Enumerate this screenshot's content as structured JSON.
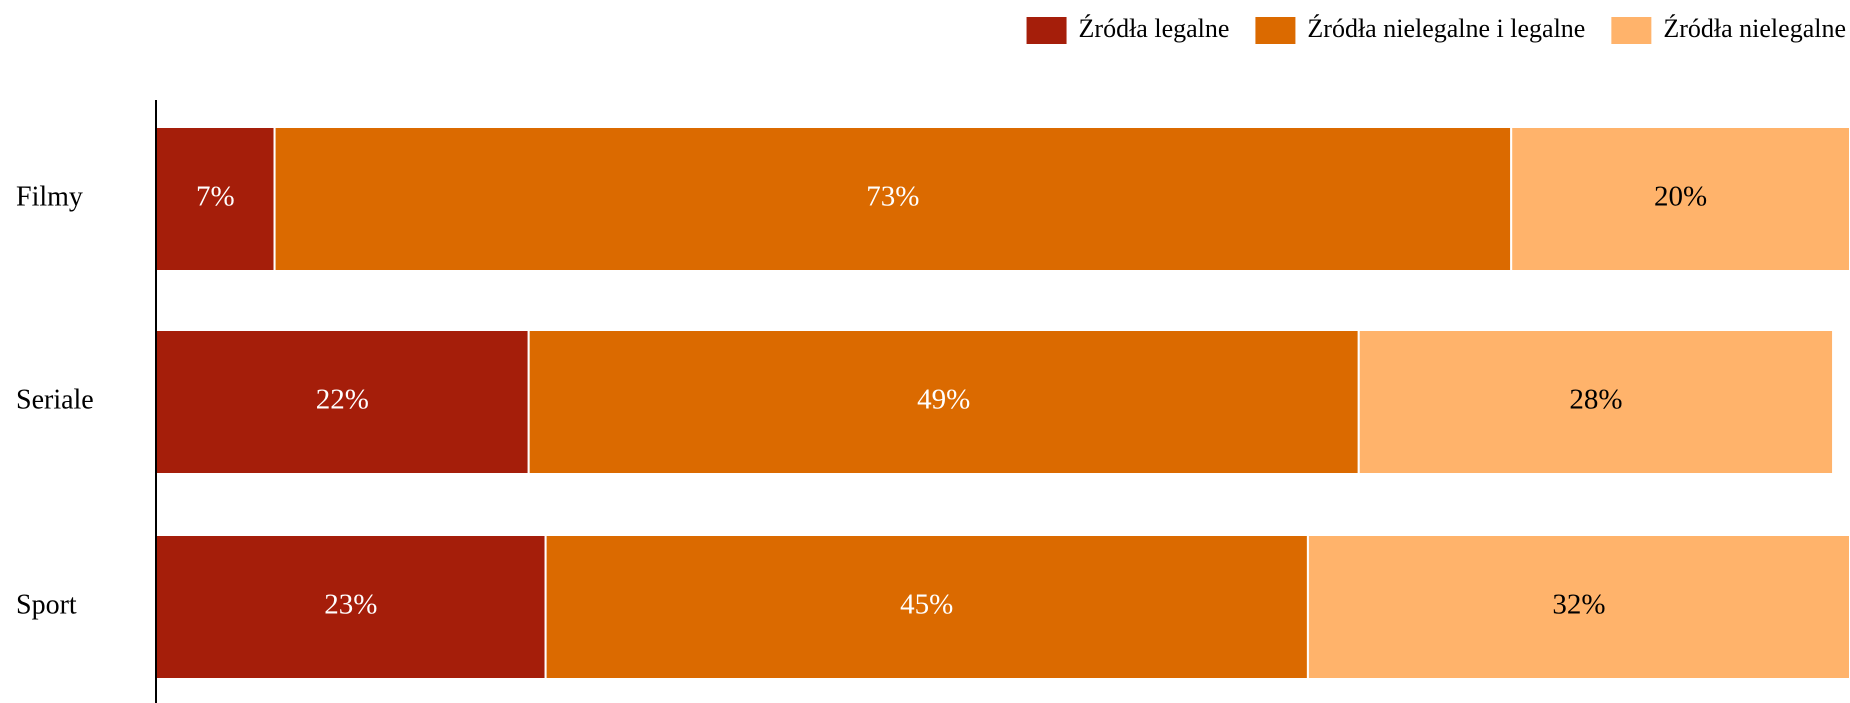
{
  "chart_data": {
    "type": "stacked-barh",
    "categories": [
      "Filmy",
      "Seriale",
      "Sport"
    ],
    "series": [
      {
        "name": "Źródła legalne",
        "color": "#a51e0a",
        "values": [
          7,
          22,
          23
        ],
        "value_labels": [
          "7%",
          "22%",
          "23%"
        ]
      },
      {
        "name": "Źródła nielegalne i legalne",
        "color": "#db6a00",
        "values": [
          73,
          49,
          45
        ],
        "value_labels": [
          "73%",
          "49%",
          "45%"
        ]
      },
      {
        "name": "Źródła nielegalne",
        "color": "#ffb36b",
        "values": [
          20,
          28,
          32
        ],
        "value_labels": [
          "20%",
          "28%",
          "32%"
        ]
      }
    ],
    "xlim": [
      0,
      100
    ],
    "legend": "top-right"
  }
}
